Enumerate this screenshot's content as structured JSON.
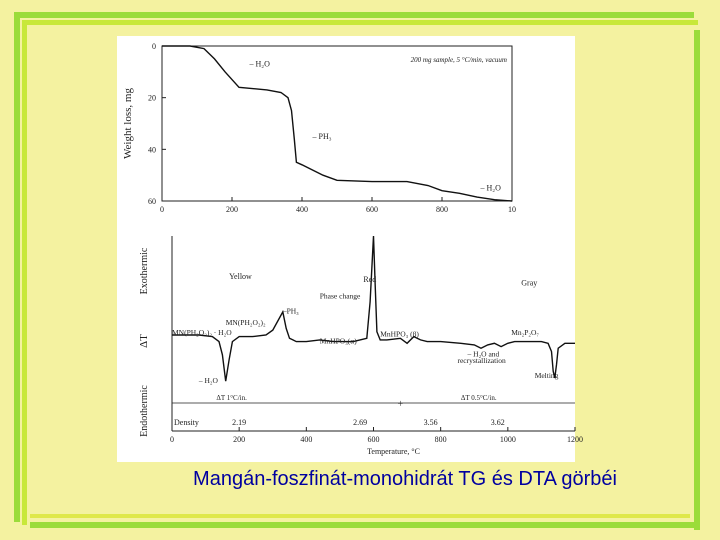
{
  "slide": {
    "caption": "Mangán-foszfinát-monohidrát TG és DTA görbéi",
    "background_color": "#f4f2a0",
    "accent_colors": [
      "#7fd84a",
      "#b8e830",
      "#dfe84a"
    ]
  },
  "chart_data": [
    {
      "type": "line",
      "name": "TG",
      "ylabel": "Weight loss, mg",
      "annotation_sample": "200 mg sample, 5 °C/min, vacuum",
      "xlim": [
        0,
        1000
      ],
      "ylim": [
        0,
        60
      ],
      "x_ticks": [
        "0",
        "200",
        "400",
        "600",
        "800",
        "10"
      ],
      "y_ticks": [
        "0",
        "20",
        "40",
        "60"
      ],
      "labels": [
        {
          "text": "– H₂O",
          "x": 250,
          "y": 8
        },
        {
          "text": "– PH₃",
          "x": 430,
          "y": 36
        },
        {
          "text": "– H₂O",
          "x": 910,
          "y": 56
        }
      ],
      "series": [
        {
          "x": [
            0,
            80,
            120,
            150,
            180,
            220,
            300,
            340,
            360,
            370,
            378,
            384,
            400,
            430,
            460,
            500,
            600,
            700,
            760,
            800,
            850,
            900,
            950,
            1000
          ],
          "y": [
            0,
            0,
            1,
            5,
            10,
            16,
            17,
            18,
            20,
            25,
            36,
            45,
            46,
            48,
            50,
            52,
            52.5,
            52.5,
            54,
            56,
            57,
            58.5,
            59.5,
            60
          ]
        }
      ]
    },
    {
      "type": "line",
      "name": "DTA",
      "ylabel": "ΔT",
      "exo_label": "Exothermic",
      "endo_label": "Endothermic",
      "xlabel": "Temperature, °C",
      "xlim": [
        0,
        1200
      ],
      "x_ticks": [
        "0",
        "200",
        "400",
        "600",
        "800",
        "1000",
        "1200"
      ],
      "color_labels": [
        {
          "text": "Yellow",
          "x": 170,
          "y": 74
        },
        {
          "text": "Red",
          "x": 570,
          "y": 72
        },
        {
          "text": "Gray",
          "x": 1040,
          "y": 70
        }
      ],
      "annotations": [
        {
          "text": "Phase change",
          "x": 440,
          "y": 62
        },
        {
          "text": "–PH₃",
          "x": 330,
          "y": 53
        },
        {
          "text": "MN(PH₂O₂)₂",
          "x": 160,
          "y": 46
        },
        {
          "text": "MN(PH₂O₂)₂ · H₂O",
          "x": 0,
          "y": 40
        },
        {
          "text": "MnHPO₃(α)",
          "x": 440,
          "y": 35
        },
        {
          "text": "MnHPO₃ (β)",
          "x": 620,
          "y": 39
        },
        {
          "text": "Mn₂P₂O₇",
          "x": 1010,
          "y": 40
        },
        {
          "text": "– H₂O and",
          "x": 880,
          "y": 27
        },
        {
          "text": "recrystallization",
          "x": 850,
          "y": 23
        },
        {
          "text": "– H₂O",
          "x": 80,
          "y": 11
        },
        {
          "text": "Melting",
          "x": 1080,
          "y": 14
        }
      ],
      "rate_labels": [
        "ΔT 1°C/in.",
        "ΔT 0.5°C/in."
      ],
      "density_label": "Density",
      "density_values": [
        {
          "text": "2.19",
          "x": 200
        },
        {
          "text": "2.69",
          "x": 560
        },
        {
          "text": "3.56",
          "x": 770
        },
        {
          "text": "3.62",
          "x": 970
        }
      ],
      "ylim": [
        0,
        100
      ],
      "series": [
        {
          "x": [
            0,
            80,
            120,
            140,
            150,
            160,
            170,
            180,
            200,
            240,
            280,
            300,
            330,
            340,
            350,
            360,
            370,
            400,
            440,
            480,
            540,
            580,
            590,
            600,
            605,
            610,
            620,
            640,
            680,
            700,
            720,
            740,
            760,
            800,
            860,
            900,
            920,
            940,
            960,
            980,
            1000,
            1020,
            1060,
            1100,
            1120,
            1130,
            1135,
            1140,
            1145,
            1150,
            1170,
            1200
          ],
          "y": [
            40,
            40,
            39,
            36,
            28,
            12,
            25,
            36,
            39,
            39,
            40,
            43,
            54,
            44,
            38,
            37,
            36,
            36,
            37,
            36,
            36,
            38,
            60,
            100,
            70,
            42,
            37,
            37,
            38,
            35,
            39,
            37,
            36,
            36,
            35,
            34,
            32,
            34,
            35,
            33,
            35,
            36,
            36,
            36,
            35,
            30,
            18,
            14,
            22,
            32,
            35,
            35
          ]
        }
      ]
    }
  ]
}
